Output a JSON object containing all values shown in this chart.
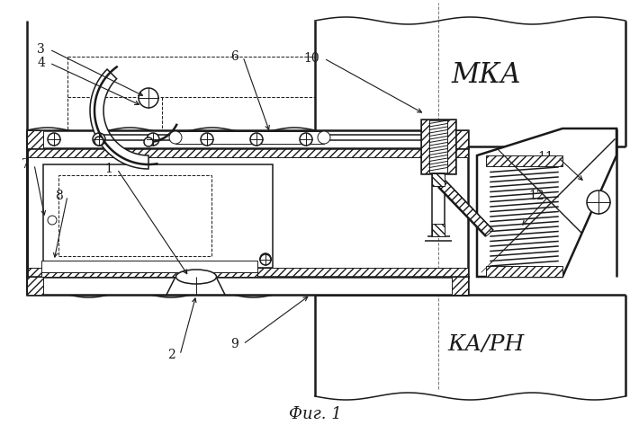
{
  "bg_color": "#ffffff",
  "line_color": "#1a1a1a",
  "title": "Фиг. 1",
  "label_MKA": "МКА",
  "label_KARN": "КА/РН"
}
